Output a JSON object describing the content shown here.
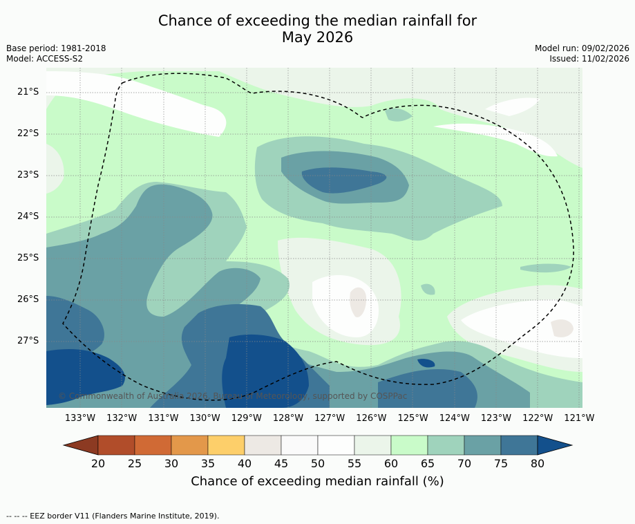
{
  "title": {
    "line1": "Chance of exceeding the median rainfall for",
    "line2": "May 2026"
  },
  "meta": {
    "base_period": "Base period: 1981-2018",
    "model": "Model: ACCESS-S2",
    "model_run": "Model run: 09/02/2026",
    "issued": "Issued: 11/02/2026"
  },
  "copyright": "© Commonwealth of Australia 2026, Bureau of Meteorology, supported by COSPPac",
  "footnote": "--  --  -- EEZ border V11 (Flanders Marine Institute, 2019).",
  "colorbar": {
    "title": "Chance of exceeding median rainfall (%)",
    "ticks": [
      "20",
      "25",
      "30",
      "35",
      "40",
      "45",
      "50",
      "55",
      "60",
      "65",
      "70",
      "75",
      "80"
    ],
    "colors": [
      "#8c3a22",
      "#b14d2a",
      "#d06a35",
      "#e3984a",
      "#fdcf6a",
      "#ede9e4",
      "#fafafa",
      "#fdfefd",
      "#ebf5ea",
      "#c9fbc9",
      "#9fd3bc",
      "#6aa1a5",
      "#3f7697",
      "#13508c"
    ]
  },
  "chart_data": {
    "type": "heatmap",
    "variable": "Chance of exceeding median rainfall (%)",
    "x_ticks": [
      "133°W",
      "132°W",
      "131°W",
      "130°W",
      "129°W",
      "128°W",
      "127°W",
      "126°W",
      "125°W",
      "124°W",
      "123°W",
      "122°W",
      "121°W"
    ],
    "y_ticks": [
      "21°S",
      "22°S",
      "23°S",
      "24°S",
      "25°S",
      "26°S",
      "27°S"
    ],
    "xlim": [
      -133.8,
      -120.9
    ],
    "ylim": [
      -28.6,
      -20.6
    ],
    "grid": true,
    "bands": [
      {
        "range": "60-65",
        "color": "#c9fbc9"
      },
      {
        "range": "65-70",
        "color": "#9fd3bc"
      },
      {
        "range": "70-75",
        "color": "#6aa1a5"
      },
      {
        "range": "75-80",
        "color": "#3f7697"
      },
      {
        "range": ">80",
        "color": "#13508c"
      },
      {
        "range": "55-60",
        "color": "#ebf5ea"
      },
      {
        "range": "50-55",
        "color": "#fdfefd"
      },
      {
        "range": "45-50",
        "color": "#fafafa"
      },
      {
        "range": "40-45",
        "color": "#ede9e4"
      }
    ]
  }
}
